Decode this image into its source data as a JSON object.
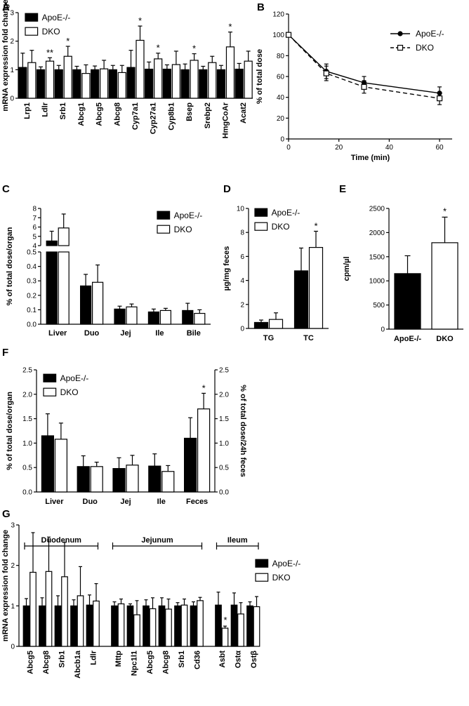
{
  "series_names": [
    "ApoE-/-",
    "DKO"
  ],
  "colors": {
    "ApoE": "#000000",
    "DKO": "#ffffff",
    "stroke": "#000000"
  },
  "chart_data": [
    {
      "id": "A",
      "panel_label": "A",
      "type": "bar",
      "ylabel": "mRNA expression fold change",
      "ylim": [
        0,
        3
      ],
      "yticks": [
        0,
        1,
        2,
        3
      ],
      "categories": [
        "Lrp1",
        "Ldlr",
        "Srb1",
        "Abcg1",
        "Abcg5",
        "Abcg8",
        "Cyp7a1",
        "Cyp27a1",
        "Cyp8b1",
        "Bsep",
        "Srebp2",
        "HmgCoAr",
        "Acat2"
      ],
      "series": [
        {
          "name": "ApoE-/-",
          "values": [
            1.08,
            1.0,
            1.0,
            1.0,
            1.0,
            1.0,
            1.08,
            1.02,
            1.02,
            1.0,
            1.0,
            1.0,
            1.02
          ],
          "errors": [
            0.5,
            0.1,
            0.15,
            0.12,
            0.13,
            0.15,
            0.6,
            0.25,
            0.15,
            0.2,
            0.12,
            0.15,
            0.2
          ]
        },
        {
          "name": "DKO",
          "values": [
            1.25,
            1.3,
            1.47,
            0.87,
            1.03,
            0.9,
            2.03,
            1.38,
            1.18,
            1.33,
            1.25,
            1.8,
            1.3
          ],
          "errors": [
            0.43,
            0.12,
            0.35,
            0.3,
            0.3,
            0.25,
            0.5,
            0.2,
            0.47,
            0.23,
            0.22,
            0.52,
            0.35
          ]
        }
      ],
      "significance": [
        "",
        "**",
        "*",
        "",
        "",
        "",
        "*",
        "*",
        "",
        "*",
        "",
        "*",
        ""
      ],
      "legend": "top-left"
    },
    {
      "id": "B",
      "panel_label": "B",
      "type": "line",
      "xlabel": "Time (min)",
      "ylabel": "% of total dose",
      "xlim": [
        0,
        65
      ],
      "ylim": [
        0,
        120
      ],
      "xticks": [
        0,
        20,
        40,
        60
      ],
      "yticks": [
        0,
        20,
        40,
        60,
        80,
        100,
        120
      ],
      "x": [
        0,
        15,
        30,
        60
      ],
      "series": [
        {
          "name": "ApoE-/-",
          "values": [
            100,
            65,
            54,
            44
          ],
          "errors": [
            0,
            7,
            6,
            6
          ]
        },
        {
          "name": "DKO",
          "values": [
            100,
            63,
            50,
            39
          ],
          "errors": [
            0,
            7,
            6,
            6
          ]
        }
      ],
      "legend": "top-right"
    },
    {
      "id": "C",
      "panel_label": "C",
      "type": "bar",
      "ylabel": "% of total dose/organ",
      "broken_axis": true,
      "upper_ylim": [
        4,
        8
      ],
      "upper_yticks": [
        4,
        5,
        6,
        7,
        8
      ],
      "lower_ylim": [
        0,
        0.5
      ],
      "lower_yticks": [
        "0.0",
        "0.1",
        "0.2",
        "0.3",
        "0.4",
        "0.5"
      ],
      "categories": [
        "Liver",
        "Duo",
        "Jej",
        "Ile",
        "Bile"
      ],
      "series": [
        {
          "name": "ApoE-/-",
          "values": [
            4.5,
            0.265,
            0.105,
            0.085,
            0.095
          ],
          "errors": [
            1.05,
            0.08,
            0.02,
            0.02,
            0.05
          ]
        },
        {
          "name": "DKO",
          "values": [
            5.9,
            0.29,
            0.12,
            0.095,
            0.075
          ],
          "errors": [
            1.5,
            0.12,
            0.02,
            0.015,
            0.025
          ]
        }
      ],
      "legend": "top-right"
    },
    {
      "id": "D",
      "panel_label": "D",
      "type": "bar",
      "ylabel": "µg/mg feces",
      "ylim": [
        0,
        10
      ],
      "yticks": [
        0,
        2,
        4,
        6,
        8,
        10
      ],
      "categories": [
        "TG",
        "TC"
      ],
      "series": [
        {
          "name": "ApoE-/-",
          "values": [
            0.5,
            4.8
          ],
          "errors": [
            0.2,
            1.9
          ]
        },
        {
          "name": "DKO",
          "values": [
            0.75,
            6.75
          ],
          "errors": [
            0.55,
            1.35
          ]
        }
      ],
      "significance": [
        "",
        "*"
      ],
      "legend": "top-left"
    },
    {
      "id": "E",
      "panel_label": "E",
      "type": "bar",
      "ylabel": "cpm/µl",
      "ylim": [
        0,
        2500
      ],
      "yticks": [
        0,
        500,
        1000,
        1500,
        2000,
        2500
      ],
      "categories": [
        "ApoE-/-",
        "DKO"
      ],
      "values": [
        1150,
        1790
      ],
      "errors": [
        370,
        530
      ],
      "significance": [
        "",
        "*"
      ]
    },
    {
      "id": "F",
      "panel_label": "F",
      "type": "bar",
      "ylabel": "% of total dose/organ",
      "ylabel_right": "% of total dose/24h feces",
      "ylim": [
        0,
        2.5
      ],
      "yticks": [
        "0.0",
        "0.5",
        "1.0",
        "1.5",
        "2.0",
        "2.5"
      ],
      "categories": [
        "Liver",
        "Duo",
        "Jej",
        "Ile",
        "Feces"
      ],
      "series": [
        {
          "name": "ApoE-/-",
          "values": [
            1.15,
            0.52,
            0.48,
            0.53,
            1.1
          ],
          "errors": [
            0.45,
            0.22,
            0.22,
            0.25,
            0.42
          ]
        },
        {
          "name": "DKO",
          "values": [
            1.08,
            0.52,
            0.55,
            0.42,
            1.7
          ],
          "errors": [
            0.33,
            0.09,
            0.2,
            0.12,
            0.32
          ]
        }
      ],
      "significance": [
        "",
        "",
        "",
        "",
        "*"
      ],
      "legend": "top-left"
    },
    {
      "id": "G",
      "panel_label": "G",
      "type": "bar",
      "ylabel": "mRNA expression fold change",
      "ylim": [
        0,
        3
      ],
      "yticks": [
        0,
        1,
        2,
        3
      ],
      "regions": [
        {
          "label": "Duodenum",
          "categories": [
            "Abcg5",
            "Abcg8",
            "Srb1",
            "Abcb1a",
            "Ldlr"
          ]
        },
        {
          "label": "Jejunum",
          "categories": [
            "Mttp",
            "Npc1l1",
            "Abcg5",
            "Abcg8",
            "Srb1",
            "Cd36"
          ]
        },
        {
          "label": "Ileum",
          "categories": [
            "Asbt",
            "Ostα",
            "Ostβ"
          ]
        }
      ],
      "categories": [
        "Abcg5",
        "Abcg8",
        "Srb1",
        "Abcb1a",
        "Ldlr",
        "Mttp",
        "Npc1l1",
        "Abcg5",
        "Abcg8",
        "Srb1",
        "Cd36",
        "Asbt",
        "Ostα",
        "Ostβ"
      ],
      "series": [
        {
          "name": "ApoE-/-",
          "values": [
            1.0,
            1.0,
            1.0,
            1.0,
            1.02,
            1.0,
            1.0,
            1.0,
            1.0,
            1.0,
            1.0,
            1.02,
            1.02,
            1.0
          ],
          "errors": [
            0.18,
            0.2,
            0.25,
            0.15,
            0.25,
            0.1,
            0.05,
            0.15,
            0.2,
            0.08,
            0.1,
            0.32,
            0.3,
            0.1
          ]
        },
        {
          "name": "DKO",
          "values": [
            1.83,
            1.85,
            1.72,
            1.25,
            1.12,
            1.05,
            0.78,
            0.93,
            0.92,
            1.02,
            1.13,
            0.45,
            0.8,
            0.98
          ],
          "errors": [
            0.98,
            0.85,
            0.85,
            0.72,
            0.43,
            0.12,
            0.35,
            0.27,
            0.25,
            0.15,
            0.08,
            0.05,
            0.28,
            0.25
          ]
        }
      ],
      "significance": [
        "",
        "",
        "",
        "",
        "",
        "",
        "",
        "",
        "",
        "",
        "",
        "*",
        "",
        ""
      ],
      "legend": "top-right"
    }
  ]
}
